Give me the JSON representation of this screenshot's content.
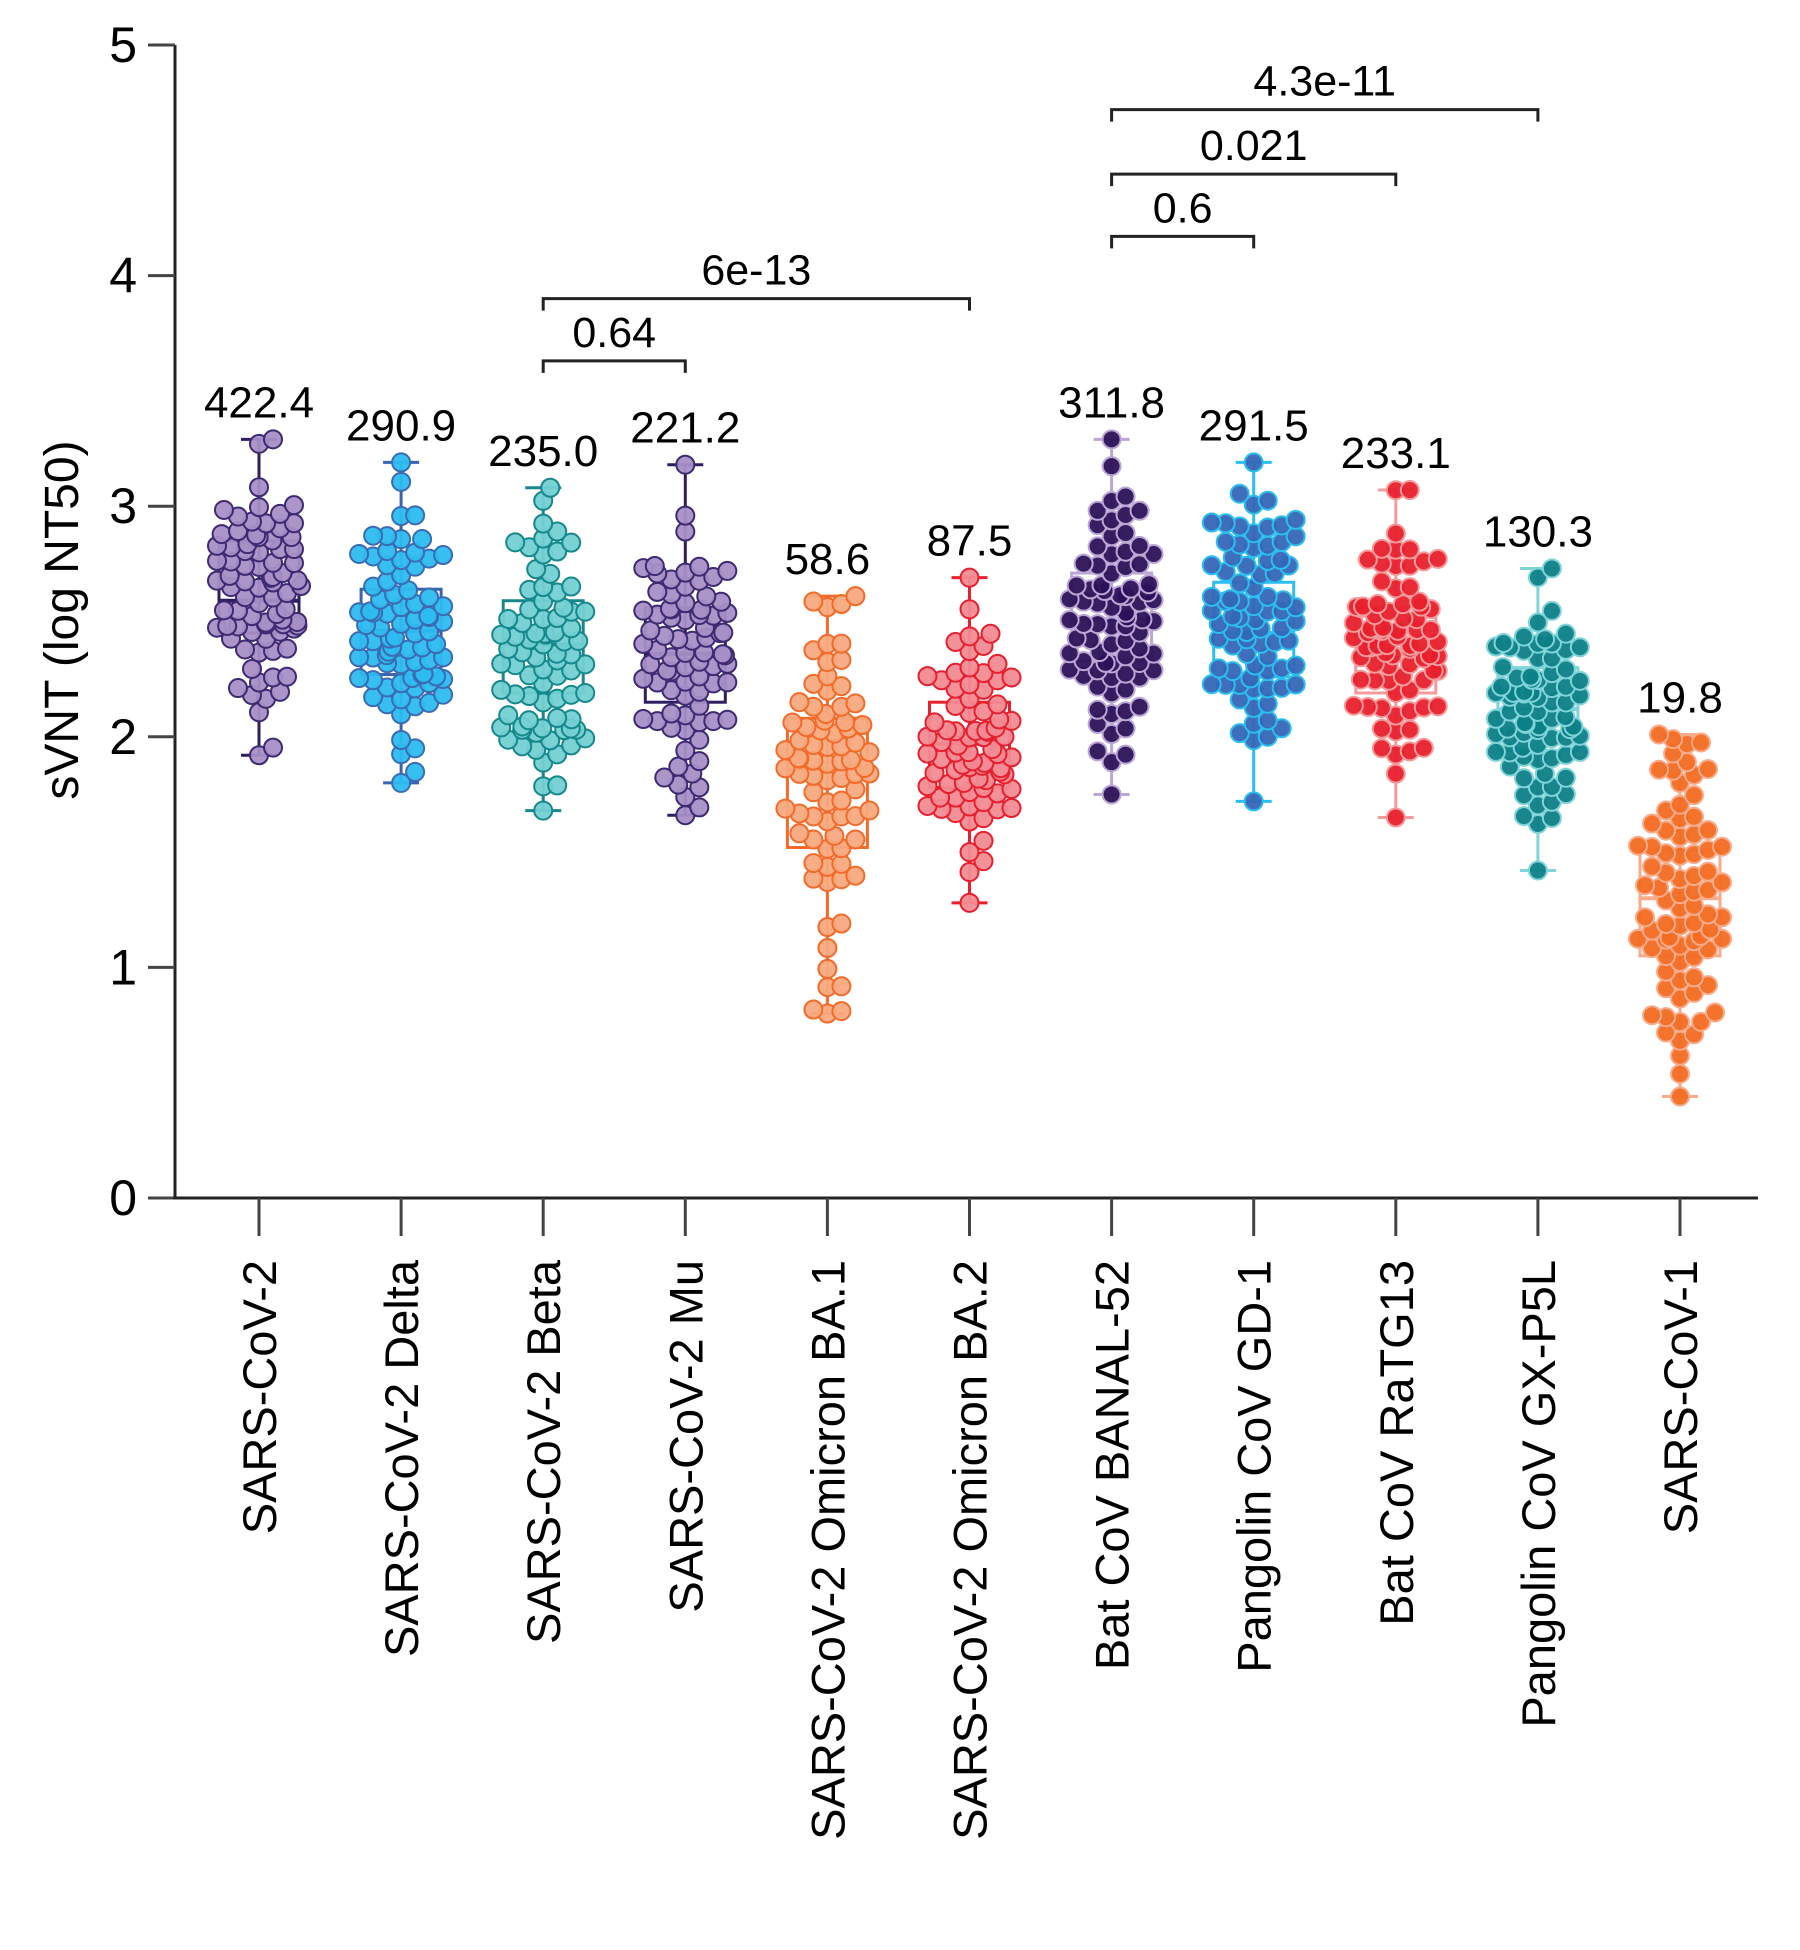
{
  "chart_data": {
    "type": "box",
    "title": "",
    "ylabel": "sVNT (log NT50)",
    "xlabel": "",
    "ylim": [
      0,
      5
    ],
    "yticks": [
      0,
      1,
      2,
      3,
      4,
      5
    ],
    "grid": false,
    "legend": "none",
    "categories": [
      "SARS-CoV-2",
      "SARS-CoV-2 Delta",
      "SARS-CoV-2 Beta",
      "SARS-CoV-2 Mu",
      "SARS-CoV-2 Omicron BA.1",
      "SARS-CoV-2 Omicron BA.2",
      "Bat CoV BANAL-52",
      "Pangolin CoV GD-1",
      "Bat CoV RaTG13",
      "Pangolin CoV GX-P5L",
      "SARS-CoV-1"
    ],
    "geometric_mean_labels": [
      "422.4",
      "290.9",
      "235.0",
      "221.2",
      "58.6",
      "87.5",
      "311.8",
      "291.5",
      "233.1",
      "130.3",
      "19.8"
    ],
    "series": [
      {
        "name": "SARS-CoV-2",
        "min": 1.92,
        "q1": 2.45,
        "median": 2.59,
        "q3": 2.85,
        "max": 3.29,
        "dot_fill": "#a68fc6",
        "dot_stroke": "#3d2a72",
        "box_color": "#2e1d5f"
      },
      {
        "name": "SARS-CoV-2 Delta",
        "min": 1.8,
        "q1": 2.27,
        "median": 2.46,
        "q3": 2.64,
        "max": 3.19,
        "dot_fill": "#2cbcf0",
        "dot_stroke": "#3a6bb3",
        "box_color": "#3a63b0"
      },
      {
        "name": "SARS-CoV-2 Beta",
        "min": 1.68,
        "q1": 2.19,
        "median": 2.4,
        "q3": 2.59,
        "max": 3.08,
        "dot_fill": "#74d0d2",
        "dot_stroke": "#16888c",
        "box_color": "#16888c"
      },
      {
        "name": "SARS-CoV-2 Mu",
        "min": 1.66,
        "q1": 2.15,
        "median": 2.36,
        "q3": 2.56,
        "max": 3.18,
        "dot_fill": "#a68fc6",
        "dot_stroke": "#3d2a72",
        "box_color": "#2e1d5f"
      },
      {
        "name": "SARS-CoV-2 Omicron BA.1",
        "min": 0.8,
        "q1": 1.52,
        "median": 1.86,
        "q3": 2.08,
        "max": 2.61,
        "dot_fill": "#f7aa80",
        "dot_stroke": "#f26b2a",
        "box_color": "#f26b2a"
      },
      {
        "name": "SARS-CoV-2 Omicron BA.2",
        "min": 1.28,
        "q1": 1.78,
        "median": 1.97,
        "q3": 2.15,
        "max": 2.69,
        "dot_fill": "#f28b93",
        "dot_stroke": "#e6202e",
        "box_color": "#e6202e"
      },
      {
        "name": "Bat CoV BANAL-52",
        "min": 1.75,
        "q1": 2.33,
        "median": 2.51,
        "q3": 2.71,
        "max": 3.29,
        "dot_fill": "#2b1257",
        "dot_stroke": "#bba6d6",
        "box_color": "#bba6d6"
      },
      {
        "name": "Pangolin CoV GD-1",
        "min": 1.72,
        "q1": 2.26,
        "median": 2.45,
        "q3": 2.67,
        "max": 3.19,
        "dot_fill": "#3566b6",
        "dot_stroke": "#2dbef0",
        "box_color": "#2dbef0"
      },
      {
        "name": "Bat CoV RaTG13",
        "min": 1.65,
        "q1": 2.19,
        "median": 2.38,
        "q3": 2.56,
        "max": 3.07,
        "dot_fill": "#e8202d",
        "dot_stroke": "#f49a9a",
        "box_color": "#f49a9a"
      },
      {
        "name": "Pangolin CoV GX-P5L",
        "min": 1.42,
        "q1": 1.94,
        "median": 2.12,
        "q3": 2.3,
        "max": 2.73,
        "dot_fill": "#0d8087",
        "dot_stroke": "#7fd4d9",
        "box_color": "#7fd4d9"
      },
      {
        "name": "SARS-CoV-1",
        "min": 0.44,
        "q1": 1.05,
        "median": 1.3,
        "q3": 1.51,
        "max": 2.01,
        "dot_fill": "#f26b22",
        "dot_stroke": "#f8ab8b",
        "box_color": "#f8ab8b"
      }
    ],
    "comparisons": [
      {
        "from": "SARS-CoV-2 Beta",
        "to": "SARS-CoV-2 Mu",
        "p": "0.64",
        "y": 3.63
      },
      {
        "from": "SARS-CoV-2 Beta",
        "to": "SARS-CoV-2 Omicron BA.2",
        "p": "6e-13",
        "y": 3.9
      },
      {
        "from": "Bat CoV BANAL-52",
        "to": "Pangolin CoV GD-1",
        "p": "0.6",
        "y": 4.17
      },
      {
        "from": "Bat CoV BANAL-52",
        "to": "Bat CoV RaTG13",
        "p": "0.021",
        "y": 4.44
      },
      {
        "from": "Bat CoV BANAL-52",
        "to": "Pangolin CoV GX-P5L",
        "p": "4.3e-11",
        "y": 4.72
      }
    ]
  }
}
